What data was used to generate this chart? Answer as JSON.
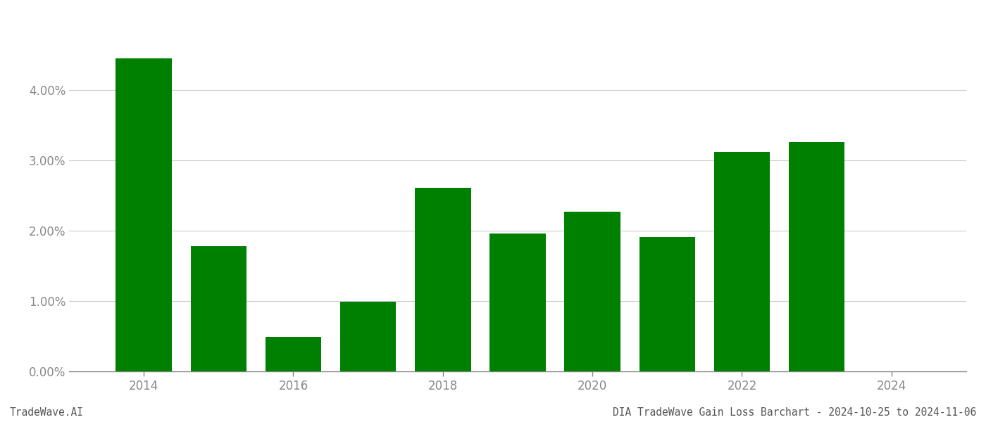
{
  "years": [
    2014,
    2015,
    2016,
    2017,
    2018,
    2019,
    2020,
    2021,
    2022,
    2023
  ],
  "values": [
    0.0445,
    0.0178,
    0.0049,
    0.0099,
    0.0261,
    0.0196,
    0.0227,
    0.0191,
    0.0312,
    0.0326
  ],
  "bar_color": "#008000",
  "background_color": "#ffffff",
  "grid_color": "#cccccc",
  "footer_left": "TradeWave.AI",
  "footer_right": "DIA TradeWave Gain Loss Barchart - 2024-10-25 to 2024-11-06",
  "ylim": [
    0,
    0.048
  ],
  "yticks": [
    0.0,
    0.01,
    0.02,
    0.03,
    0.04
  ],
  "xtick_labels": [
    2014,
    2016,
    2018,
    2020,
    2022,
    2024
  ],
  "bar_width": 0.75,
  "axis_color": "#888888",
  "tick_color": "#888888",
  "footer_fontsize": 10.5,
  "tick_fontsize": 12,
  "xlim": [
    2013.0,
    2025.0
  ]
}
